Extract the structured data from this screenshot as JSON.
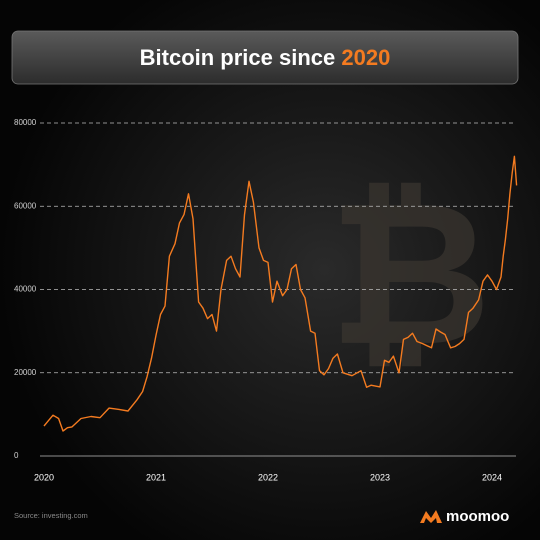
{
  "chart_data": {
    "type": "line",
    "title": "Bitcoin price since",
    "title_highlight": "2020",
    "source": "Source: investing.com",
    "brand": "moomoo",
    "color": "#f47b20",
    "highlight_color": "#f47b20",
    "grid": true,
    "xlim": [
      2020,
      2024.25
    ],
    "xticks": [
      2020,
      2021,
      2022,
      2023,
      2024
    ],
    "ylim": [
      0,
      80000
    ],
    "yticks": [
      0,
      20000,
      40000,
      60000,
      80000
    ],
    "series": [
      {
        "name": "Bitcoin",
        "color": "#f47b20",
        "x": [
          2020.0,
          2020.04,
          2020.08,
          2020.13,
          2020.17,
          2020.21,
          2020.25,
          2020.33,
          2020.42,
          2020.5,
          2020.58,
          2020.67,
          2020.75,
          2020.83,
          2020.88,
          2020.92,
          2020.96,
          2021.0,
          2021.04,
          2021.08,
          2021.12,
          2021.17,
          2021.21,
          2021.25,
          2021.29,
          2021.33,
          2021.38,
          2021.42,
          2021.46,
          2021.5,
          2021.54,
          2021.58,
          2021.63,
          2021.67,
          2021.71,
          2021.75,
          2021.79,
          2021.83,
          2021.87,
          2021.92,
          2021.96,
          2022.0,
          2022.04,
          2022.08,
          2022.13,
          2022.17,
          2022.21,
          2022.25,
          2022.29,
          2022.33,
          2022.38,
          2022.42,
          2022.46,
          2022.5,
          2022.54,
          2022.58,
          2022.62,
          2022.67,
          2022.75,
          2022.83,
          2022.88,
          2022.92,
          2022.96,
          2023.0,
          2023.04,
          2023.08,
          2023.12,
          2023.17,
          2023.21,
          2023.25,
          2023.29,
          2023.33,
          2023.38,
          2023.42,
          2023.46,
          2023.5,
          2023.54,
          2023.58,
          2023.63,
          2023.67,
          2023.71,
          2023.75,
          2023.79,
          2023.83,
          2023.88,
          2023.92,
          2023.96,
          2024.0,
          2024.04,
          2024.08,
          2024.1,
          2024.12,
          2024.14,
          2024.16,
          2024.18,
          2024.2,
          2024.22
        ],
        "values": [
          7200,
          8500,
          9800,
          9000,
          6000,
          6800,
          7000,
          9000,
          9500,
          9200,
          11500,
          11200,
          10800,
          13500,
          15500,
          19000,
          23500,
          29000,
          34000,
          36000,
          48000,
          51000,
          56000,
          58000,
          63000,
          57000,
          37000,
          35500,
          33000,
          34000,
          30000,
          40000,
          47000,
          48000,
          45000,
          43000,
          58000,
          66000,
          61000,
          50000,
          47000,
          46500,
          37000,
          42000,
          38500,
          40000,
          45000,
          46000,
          40000,
          38000,
          30000,
          29500,
          20500,
          19500,
          21000,
          23500,
          24500,
          20000,
          19300,
          20500,
          16500,
          17000,
          16800,
          16600,
          23000,
          22500,
          24000,
          20000,
          28000,
          28500,
          29500,
          27500,
          27000,
          26500,
          26000,
          30500,
          29800,
          29200,
          26000,
          26300,
          27000,
          28000,
          34500,
          35500,
          37500,
          42000,
          43500,
          42000,
          40000,
          43000,
          48000,
          52000,
          57000,
          63000,
          68000,
          72000,
          65000
        ]
      }
    ]
  }
}
